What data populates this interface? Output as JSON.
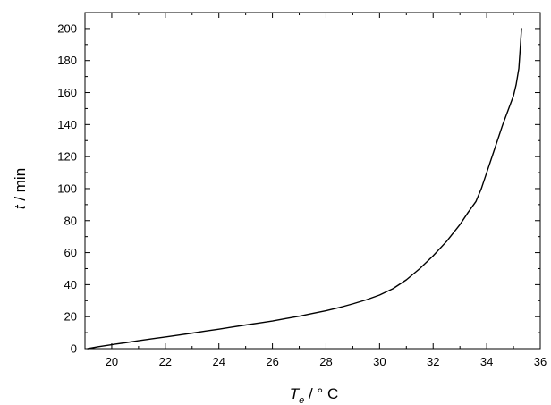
{
  "chart_data": {
    "type": "line",
    "xlabel": {
      "symbol": "T",
      "subscript": "e",
      "unit": " / ° C"
    },
    "ylabel": {
      "symbol": "t",
      "unit": " / min"
    },
    "xlim": [
      19,
      36
    ],
    "ylim": [
      0,
      210
    ],
    "x_ticks": [
      20,
      22,
      24,
      26,
      28,
      30,
      32,
      34,
      36
    ],
    "y_ticks": [
      0,
      20,
      40,
      60,
      80,
      100,
      120,
      140,
      160,
      180,
      200
    ],
    "grid": false,
    "line_color": "#000000",
    "series": [
      {
        "x": [
          19.1,
          19.5,
          20,
          20.5,
          21,
          21.5,
          22,
          22.5,
          23,
          23.5,
          24,
          24.5,
          25,
          25.5,
          26,
          26.5,
          27,
          27.5,
          28,
          28.5,
          29,
          29.5,
          30,
          30.5,
          31,
          31.5,
          32,
          32.5,
          33,
          33.3,
          33.6,
          33.8,
          34,
          34.2,
          34.4,
          34.6,
          34.8,
          35,
          35.1,
          35.2,
          35.25,
          35.3
        ],
        "y": [
          0,
          1.2,
          2.5,
          3.7,
          5,
          6.2,
          7.3,
          8.5,
          9.7,
          11,
          12.2,
          13.5,
          14.8,
          16,
          17.3,
          18.8,
          20.3,
          22,
          23.7,
          25.7,
          28,
          30.5,
          33.5,
          37.5,
          43,
          50,
          58,
          67,
          77.5,
          85,
          92,
          100,
          110,
          120,
          130,
          140,
          149,
          158,
          165,
          175,
          187,
          200
        ]
      }
    ]
  }
}
